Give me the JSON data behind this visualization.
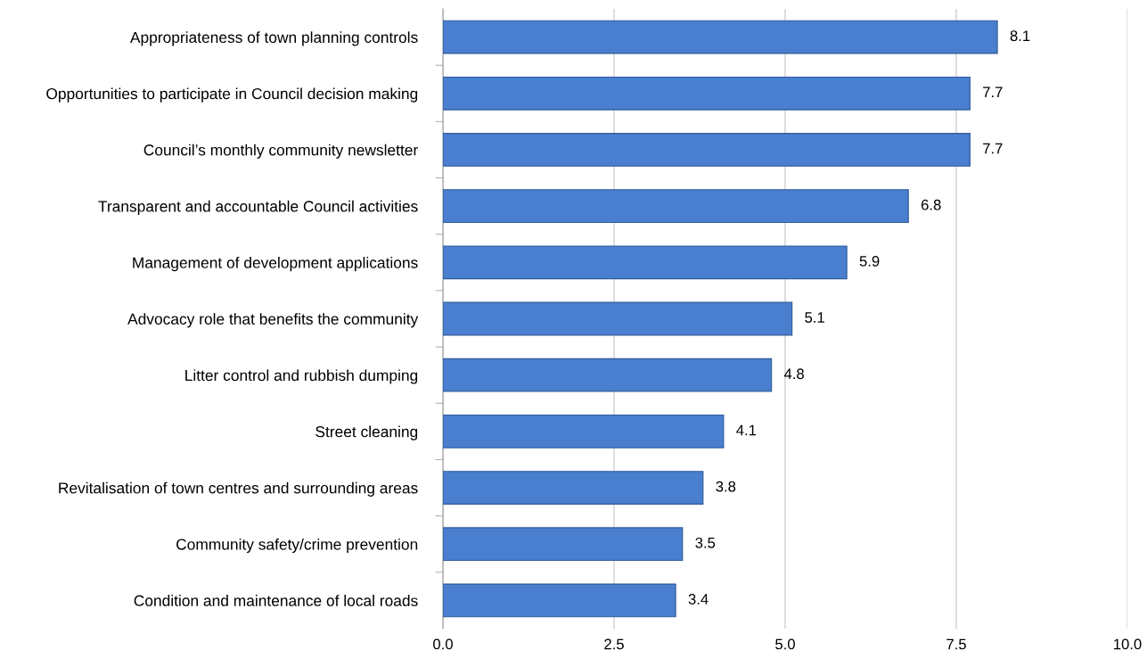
{
  "chart_data": {
    "type": "bar",
    "orientation": "horizontal",
    "categories": [
      "Appropriateness of town planning controls",
      "Opportunities to participate in Council decision making",
      "Council’s monthly community newsletter",
      "Transparent and accountable Council activities",
      "Management of development applications",
      "Advocacy role that benefits the community",
      "Litter control and rubbish dumping",
      "Street cleaning",
      "Revitalisation of town centres and surrounding areas",
      "Community safety/crime prevention",
      "Condition and maintenance of local roads"
    ],
    "values": [
      8.1,
      7.7,
      7.7,
      6.8,
      5.9,
      5.1,
      4.8,
      4.1,
      3.8,
      3.5,
      3.4
    ],
    "color": "#4a7fcf",
    "xlim": [
      0,
      10
    ],
    "xticks": [
      {
        "value": 0,
        "label": "0.0"
      },
      {
        "value": 2.5,
        "label": "2.5"
      },
      {
        "value": 5,
        "label": "5.0"
      },
      {
        "value": 7.5,
        "label": "7.5"
      },
      {
        "value": 10,
        "label": "10.0"
      }
    ],
    "grid": "x",
    "data_labels": true
  }
}
